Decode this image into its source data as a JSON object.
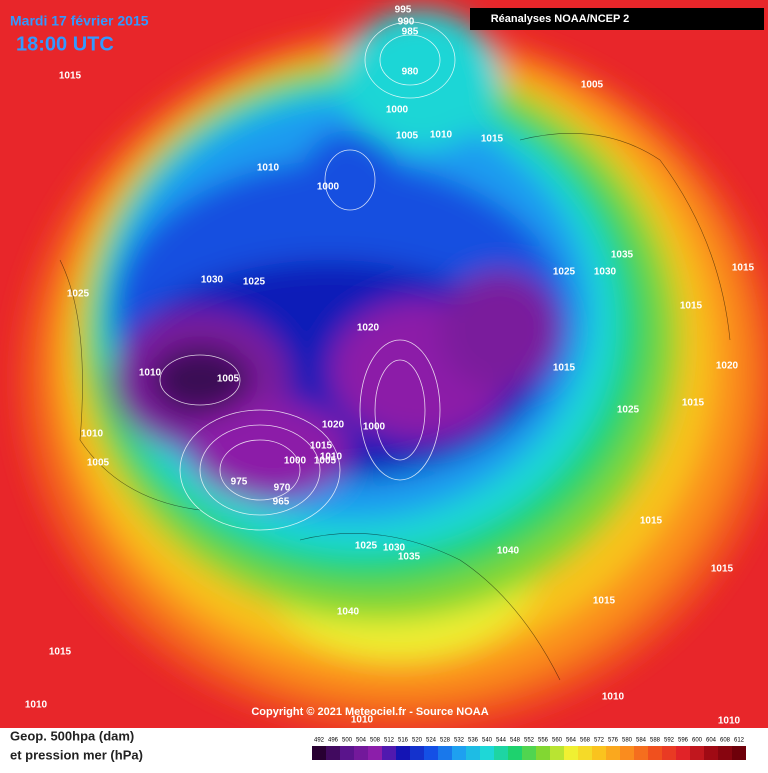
{
  "header": {
    "date": "Mardi 17 février 2015",
    "time": "18:00 UTC",
    "source": "Réanalyses NOAA/NCEP 2"
  },
  "footer": {
    "line1": "Geop. 500hpa (dam)",
    "line2": "et pression mer (hPa)",
    "copyright": "Copyright © 2021 Meteociel.fr - Source NOAA"
  },
  "scale": {
    "labels": [
      492,
      496,
      500,
      504,
      508,
      512,
      516,
      520,
      524,
      528,
      532,
      536,
      540,
      544,
      548,
      552,
      556,
      560,
      564,
      568,
      572,
      576,
      580,
      584,
      588,
      592,
      596,
      600,
      604,
      608,
      612
    ]
  },
  "isobars": [
    "995",
    "990",
    "985",
    "980",
    "1015",
    "1005",
    "1000",
    "1005",
    "1010",
    "1015",
    "1010",
    "1000",
    "1030",
    "1025",
    "1025",
    "1025",
    "1030",
    "1035",
    "1015",
    "1015",
    "1020",
    "1010",
    "1005",
    "1015",
    "1020",
    "1015",
    "1025",
    "1000",
    "1020",
    "1010",
    "1015",
    "1005",
    "1000",
    "1005",
    "1010",
    "975",
    "970",
    "965",
    "1015",
    "1025",
    "1030",
    "1035",
    "1040",
    "1015",
    "1040",
    "1015",
    "1015",
    "1010",
    "1010",
    "1010",
    "1010"
  ]
}
